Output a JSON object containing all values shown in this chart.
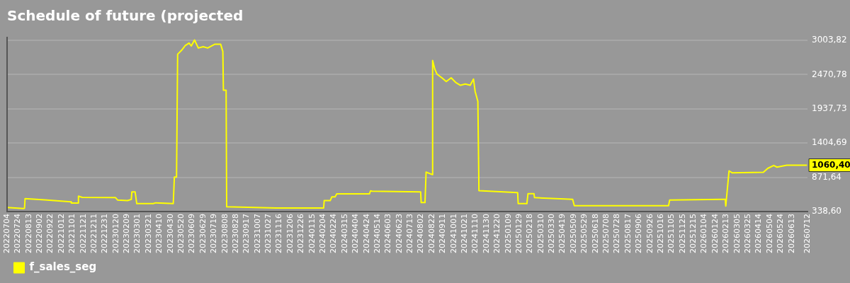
{
  "chart_data": {
    "type": "line",
    "title": "Schedule of future (projected",
    "xlim": [
      "2022-07-04",
      "2026-07-12"
    ],
    "xticks": [
      {
        "value": "2022-07-04",
        "label": "20220704"
      },
      {
        "value": "2022-07-24",
        "label": "20220724"
      },
      {
        "value": "2022-08-13",
        "label": "20220813"
      },
      {
        "value": "2022-09-02",
        "label": "20220902"
      },
      {
        "value": "2022-09-22",
        "label": "20220922"
      },
      {
        "value": "2022-10-12",
        "label": "20221012"
      },
      {
        "value": "2022-11-01",
        "label": "20221101"
      },
      {
        "value": "2022-11-21",
        "label": "20221121"
      },
      {
        "value": "2022-12-11",
        "label": "20221211"
      },
      {
        "value": "2022-12-31",
        "label": "20221231"
      },
      {
        "value": "2023-01-20",
        "label": "20230120"
      },
      {
        "value": "2023-02-09",
        "label": "20230209"
      },
      {
        "value": "2023-03-01",
        "label": "20230301"
      },
      {
        "value": "2023-03-21",
        "label": "20230321"
      },
      {
        "value": "2023-04-10",
        "label": "20230410"
      },
      {
        "value": "2023-04-30",
        "label": "20230430"
      },
      {
        "value": "2023-05-20",
        "label": "20230520"
      },
      {
        "value": "2023-06-09",
        "label": "20230609"
      },
      {
        "value": "2023-06-29",
        "label": "20230629"
      },
      {
        "value": "2023-07-19",
        "label": "20230719"
      },
      {
        "value": "2023-08-08",
        "label": "20230808"
      },
      {
        "value": "2023-08-28",
        "label": "20230828"
      },
      {
        "value": "2023-09-17",
        "label": "20230917"
      },
      {
        "value": "2023-10-07",
        "label": "20231007"
      },
      {
        "value": "2023-10-27",
        "label": "20231027"
      },
      {
        "value": "2023-11-16",
        "label": "20231116"
      },
      {
        "value": "2023-12-06",
        "label": "20231206"
      },
      {
        "value": "2023-12-26",
        "label": "20231226"
      },
      {
        "value": "2024-01-15",
        "label": "20240115"
      },
      {
        "value": "2024-02-04",
        "label": "20240204"
      },
      {
        "value": "2024-02-24",
        "label": "20240224"
      },
      {
        "value": "2024-03-15",
        "label": "20240315"
      },
      {
        "value": "2024-04-04",
        "label": "20240404"
      },
      {
        "value": "2024-04-24",
        "label": "20240424"
      },
      {
        "value": "2024-05-14",
        "label": "20240514"
      },
      {
        "value": "2024-06-03",
        "label": "20240603"
      },
      {
        "value": "2024-06-23",
        "label": "20240623"
      },
      {
        "value": "2024-07-13",
        "label": "20240713"
      },
      {
        "value": "2024-08-02",
        "label": "20240802"
      },
      {
        "value": "2024-08-22",
        "label": "20240822"
      },
      {
        "value": "2024-09-11",
        "label": "20240911"
      },
      {
        "value": "2024-10-01",
        "label": "20241001"
      },
      {
        "value": "2024-10-21",
        "label": "20241021"
      },
      {
        "value": "2024-11-10",
        "label": "20241110"
      },
      {
        "value": "2024-11-30",
        "label": "20241130"
      },
      {
        "value": "2024-12-20",
        "label": "20241220"
      },
      {
        "value": "2025-01-09",
        "label": "20250109"
      },
      {
        "value": "2025-01-29",
        "label": "20250129"
      },
      {
        "value": "2025-02-18",
        "label": "20250218"
      },
      {
        "value": "2025-03-10",
        "label": "20250310"
      },
      {
        "value": "2025-03-30",
        "label": "20250330"
      },
      {
        "value": "2025-04-19",
        "label": "20250419"
      },
      {
        "value": "2025-05-09",
        "label": "20250509"
      },
      {
        "value": "2025-05-29",
        "label": "20250529"
      },
      {
        "value": "2025-06-18",
        "label": "20250618"
      },
      {
        "value": "2025-07-08",
        "label": "20250708"
      },
      {
        "value": "2025-07-28",
        "label": "20250728"
      },
      {
        "value": "2025-08-17",
        "label": "20250817"
      },
      {
        "value": "2025-09-06",
        "label": "20250906"
      },
      {
        "value": "2025-09-26",
        "label": "20250926"
      },
      {
        "value": "2025-10-16",
        "label": "20251016"
      },
      {
        "value": "2025-11-05",
        "label": "20251105"
      },
      {
        "value": "2025-11-25",
        "label": "20251125"
      },
      {
        "value": "2025-12-15",
        "label": "20251215"
      },
      {
        "value": "2026-01-04",
        "label": "20260104"
      },
      {
        "value": "2026-01-24",
        "label": "20260124"
      },
      {
        "value": "2026-02-13",
        "label": "20260213"
      },
      {
        "value": "2026-03-05",
        "label": "20260305"
      },
      {
        "value": "2026-03-25",
        "label": "20260325"
      },
      {
        "value": "2026-04-14",
        "label": "20260414"
      },
      {
        "value": "2026-05-04",
        "label": "20260504"
      },
      {
        "value": "2026-05-24",
        "label": "20260524"
      },
      {
        "value": "2026-06-13",
        "label": "20260613"
      },
      {
        "value": "2026-07-12",
        "label": "20260712"
      }
    ],
    "ylim": [
      338.6,
      3060
    ],
    "yticks": [
      {
        "value": 338.6,
        "label": "338,60"
      },
      {
        "value": 871.64,
        "label": "871,64"
      },
      {
        "value": 1404.69,
        "label": "1404,69"
      },
      {
        "value": 1937.73,
        "label": "1937,73"
      },
      {
        "value": 2470.78,
        "label": "2470,78"
      },
      {
        "value": 3003.82,
        "label": "3003,82"
      }
    ],
    "x": [
      "2022-07-04",
      "2022-08-03",
      "2022-08-05",
      "2022-08-06",
      "2022-09-11",
      "2022-10-29",
      "2022-10-30",
      "2022-11-11",
      "2022-11-12",
      "2022-11-19",
      "2023-01-19",
      "2023-01-23",
      "2023-02-10",
      "2023-02-17",
      "2023-02-18",
      "2023-02-24",
      "2023-02-27",
      "2023-03-29",
      "2023-04-03",
      "2023-05-05",
      "2023-05-07",
      "2023-05-11",
      "2023-05-13",
      "2023-05-20",
      "2023-05-27",
      "2023-06-03",
      "2023-06-07",
      "2023-06-13",
      "2023-06-20",
      "2023-06-29",
      "2023-07-07",
      "2023-07-20",
      "2023-07-31",
      "2023-08-04",
      "2023-08-05",
      "2023-08-10",
      "2023-08-11",
      "2023-11-10",
      "2024-02-05",
      "2024-02-06",
      "2024-02-17",
      "2024-02-20",
      "2024-02-26",
      "2024-02-29",
      "2024-04-29",
      "2024-05-01",
      "2024-05-04",
      "2024-08-01",
      "2024-08-02",
      "2024-08-09",
      "2024-08-11",
      "2024-08-22",
      "2024-08-23",
      "2024-08-27",
      "2024-08-31",
      "2024-09-09",
      "2024-09-17",
      "2024-09-26",
      "2024-10-05",
      "2024-10-13",
      "2024-10-22",
      "2024-10-31",
      "2024-11-06",
      "2024-11-09",
      "2024-11-14",
      "2024-11-16",
      "2025-01-26",
      "2025-01-27",
      "2025-02-12",
      "2025-02-14",
      "2025-02-25",
      "2025-02-26",
      "2025-05-07",
      "2025-05-10",
      "2025-10-30",
      "2025-11-01",
      "2026-02-11",
      "2026-02-12",
      "2026-02-18",
      "2026-02-24",
      "2026-04-22",
      "2026-04-30",
      "2026-05-11",
      "2026-05-17",
      "2026-06-04",
      "2026-07-11"
    ],
    "series": [
      {
        "name": "f_sales_seg",
        "color": "#ffff00",
        "values": [
          401,
          385,
          390,
          540,
          520,
          489,
          471,
          471,
          578,
          559,
          555,
          517,
          510,
          527,
          644,
          644,
          462,
          462,
          475,
          462,
          876,
          876,
          2789,
          2847,
          2923,
          2962,
          2917,
          3010,
          2885,
          2905,
          2885,
          2943,
          2943,
          2830,
          2228,
          2228,
          413,
          394,
          394,
          509,
          509,
          567,
          567,
          613,
          613,
          660,
          656,
          644,
          478,
          478,
          953,
          915,
          2691,
          2557,
          2479,
          2421,
          2363,
          2421,
          2344,
          2305,
          2325,
          2305,
          2402,
          2209,
          2054,
          663,
          633,
          462,
          462,
          617,
          617,
          555,
          529,
          430,
          430,
          517,
          529,
          424,
          972,
          941,
          949,
          1011,
          1057,
          1030,
          1060,
          1060.4
        ],
        "value_labels": [
          null,
          null,
          null,
          null,
          null,
          null,
          null,
          null,
          null,
          null,
          null,
          null,
          null,
          null,
          null,
          null,
          null,
          null,
          null,
          null,
          null,
          null,
          null,
          null,
          null,
          null,
          null,
          null,
          null,
          null,
          null,
          null,
          null,
          null,
          null,
          null,
          null,
          null,
          null,
          null,
          null,
          null,
          null,
          null,
          null,
          null,
          null,
          null,
          null,
          null,
          null,
          null,
          null,
          null,
          null,
          null,
          null,
          null,
          null,
          null,
          null,
          null,
          null,
          null,
          null,
          null,
          null,
          null,
          null,
          null,
          null,
          null,
          null,
          null,
          null,
          null,
          null,
          null,
          null,
          null,
          null,
          null,
          null,
          null,
          null,
          "1060,40"
        ]
      }
    ],
    "grid": "y",
    "legend": "bottom left",
    "marker": "none",
    "line_style": "solid"
  }
}
